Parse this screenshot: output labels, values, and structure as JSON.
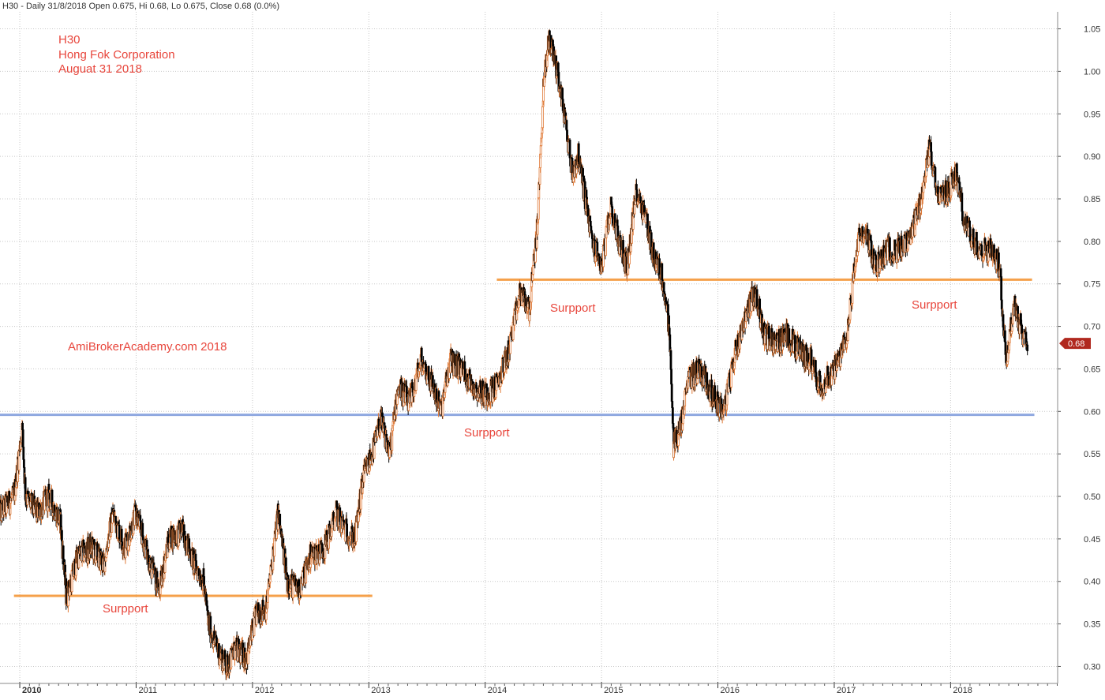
{
  "header": {
    "text": "H30 - Daily 31/8/2018 Open 0.675, Hi 0.68, Lo 0.675, Close 0.68 (0.0%)"
  },
  "annotations": {
    "ticker": "H30",
    "company": "Hong Fok Corporation",
    "date": "Auguat 31 2018",
    "watermark": "AmiBrokerAcademy.com  2018",
    "support_1": "Surpport",
    "support_2": "Surpport",
    "support_3": "Surpport",
    "support_4": "Surpport",
    "last_price": "0.68"
  },
  "colors": {
    "up_candle": "#e07b39",
    "down_candle": "#000000",
    "support_orange": "#f5a04a",
    "support_blue": "#8fa8e0",
    "annotation_red": "#e8463c",
    "last_price_badge": "#b0281e",
    "grid": "#c8c8c8"
  },
  "chart_data": {
    "type": "candlestick",
    "title": "H30",
    "ylim": [
      0.28,
      1.07
    ],
    "y_ticks": [
      "0.30",
      "0.35",
      "0.40",
      "0.45",
      "0.50",
      "0.55",
      "0.60",
      "0.65",
      "0.70",
      "0.75",
      "0.80",
      "0.85",
      "0.90",
      "0.95",
      "1.00",
      "1.05"
    ],
    "x_ticks": [
      "2010",
      "2011",
      "2012",
      "2013",
      "2014",
      "2015",
      "2016",
      "2017",
      "2018"
    ],
    "x_range": [
      2009.83,
      2018.92
    ],
    "support_lines": [
      {
        "label": "Surpport",
        "y": 0.383,
        "x_start": 2009.95,
        "x_end": 2013.03,
        "color": "orange"
      },
      {
        "label": "Surpport",
        "y": 0.596,
        "x_start": 2009.83,
        "x_end": 2018.72,
        "color": "blue"
      },
      {
        "label": "Surpport",
        "y": 0.755,
        "x_start": 2014.1,
        "x_end": 2018.7,
        "color": "orange"
      }
    ],
    "price_path": [
      [
        2009.83,
        0.48
      ],
      [
        2009.95,
        0.5
      ],
      [
        2010.02,
        0.58
      ],
      [
        2010.05,
        0.5
      ],
      [
        2010.15,
        0.48
      ],
      [
        2010.25,
        0.5
      ],
      [
        2010.35,
        0.47
      ],
      [
        2010.4,
        0.38
      ],
      [
        2010.5,
        0.43
      ],
      [
        2010.62,
        0.44
      ],
      [
        2010.72,
        0.42
      ],
      [
        2010.8,
        0.48
      ],
      [
        2010.9,
        0.44
      ],
      [
        2011.0,
        0.48
      ],
      [
        2011.12,
        0.42
      ],
      [
        2011.2,
        0.39
      ],
      [
        2011.28,
        0.45
      ],
      [
        2011.4,
        0.46
      ],
      [
        2011.5,
        0.42
      ],
      [
        2011.58,
        0.4
      ],
      [
        2011.62,
        0.35
      ],
      [
        2011.7,
        0.32
      ],
      [
        2011.78,
        0.3
      ],
      [
        2011.85,
        0.32
      ],
      [
        2011.95,
        0.31
      ],
      [
        2012.03,
        0.36
      ],
      [
        2012.12,
        0.37
      ],
      [
        2012.22,
        0.48
      ],
      [
        2012.3,
        0.4
      ],
      [
        2012.4,
        0.39
      ],
      [
        2012.5,
        0.43
      ],
      [
        2012.62,
        0.44
      ],
      [
        2012.72,
        0.48
      ],
      [
        2012.8,
        0.46
      ],
      [
        2012.88,
        0.45
      ],
      [
        2012.95,
        0.52
      ],
      [
        2013.05,
        0.56
      ],
      [
        2013.1,
        0.59
      ],
      [
        2013.18,
        0.55
      ],
      [
        2013.25,
        0.63
      ],
      [
        2013.35,
        0.61
      ],
      [
        2013.45,
        0.66
      ],
      [
        2013.55,
        0.63
      ],
      [
        2013.62,
        0.6
      ],
      [
        2013.7,
        0.66
      ],
      [
        2013.8,
        0.65
      ],
      [
        2013.9,
        0.63
      ],
      [
        2014.0,
        0.62
      ],
      [
        2014.1,
        0.63
      ],
      [
        2014.2,
        0.67
      ],
      [
        2014.3,
        0.74
      ],
      [
        2014.38,
        0.72
      ],
      [
        2014.45,
        0.82
      ],
      [
        2014.5,
        0.98
      ],
      [
        2014.55,
        1.04
      ],
      [
        2014.62,
        1.0
      ],
      [
        2014.68,
        0.95
      ],
      [
        2014.75,
        0.88
      ],
      [
        2014.8,
        0.9
      ],
      [
        2014.85,
        0.86
      ],
      [
        2014.92,
        0.8
      ],
      [
        2015.0,
        0.77
      ],
      [
        2015.08,
        0.84
      ],
      [
        2015.15,
        0.8
      ],
      [
        2015.22,
        0.77
      ],
      [
        2015.3,
        0.86
      ],
      [
        2015.38,
        0.83
      ],
      [
        2015.45,
        0.78
      ],
      [
        2015.52,
        0.76
      ],
      [
        2015.58,
        0.7
      ],
      [
        2015.62,
        0.56
      ],
      [
        2015.68,
        0.58
      ],
      [
        2015.75,
        0.64
      ],
      [
        2015.85,
        0.65
      ],
      [
        2015.95,
        0.62
      ],
      [
        2016.05,
        0.6
      ],
      [
        2016.15,
        0.67
      ],
      [
        2016.25,
        0.72
      ],
      [
        2016.32,
        0.74
      ],
      [
        2016.4,
        0.69
      ],
      [
        2016.5,
        0.68
      ],
      [
        2016.6,
        0.69
      ],
      [
        2016.7,
        0.67
      ],
      [
        2016.8,
        0.66
      ],
      [
        2016.88,
        0.63
      ],
      [
        2016.95,
        0.64
      ],
      [
        2017.05,
        0.66
      ],
      [
        2017.12,
        0.7
      ],
      [
        2017.2,
        0.8
      ],
      [
        2017.28,
        0.81
      ],
      [
        2017.35,
        0.77
      ],
      [
        2017.45,
        0.79
      ],
      [
        2017.55,
        0.79
      ],
      [
        2017.65,
        0.8
      ],
      [
        2017.75,
        0.85
      ],
      [
        2017.82,
        0.91
      ],
      [
        2017.9,
        0.85
      ],
      [
        2017.98,
        0.86
      ],
      [
        2018.05,
        0.88
      ],
      [
        2018.12,
        0.82
      ],
      [
        2018.2,
        0.8
      ],
      [
        2018.28,
        0.79
      ],
      [
        2018.35,
        0.79
      ],
      [
        2018.42,
        0.77
      ],
      [
        2018.48,
        0.66
      ],
      [
        2018.55,
        0.73
      ],
      [
        2018.6,
        0.7
      ],
      [
        2018.66,
        0.68
      ]
    ],
    "last_value": 0.68
  }
}
